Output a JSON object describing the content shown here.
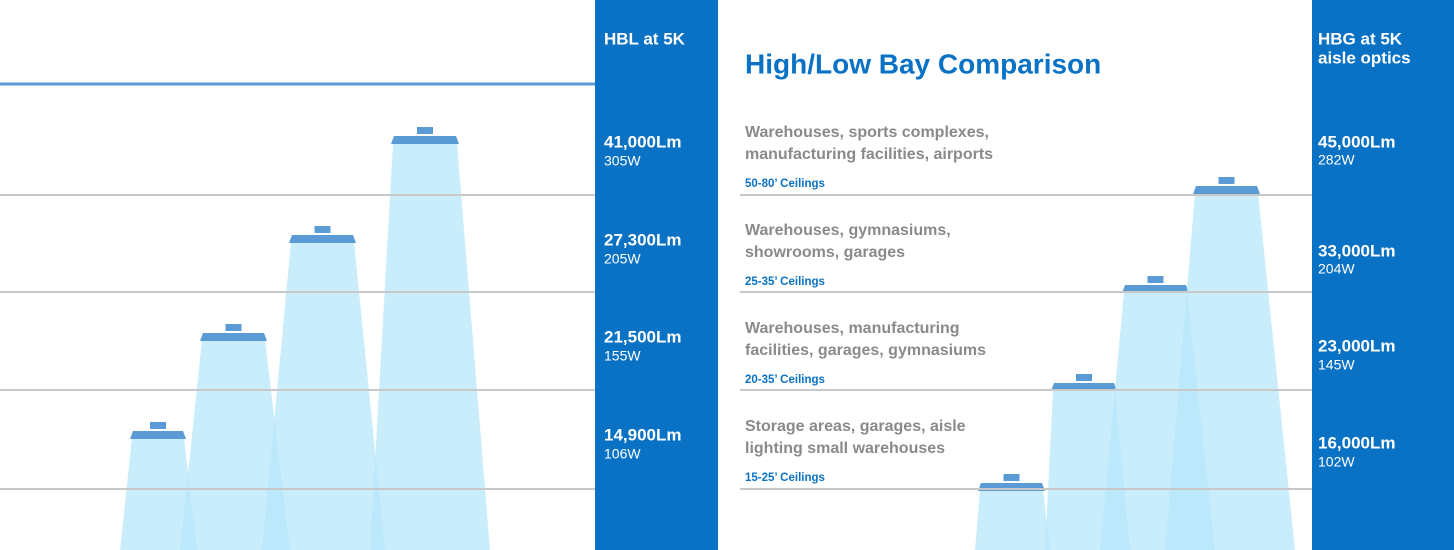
{
  "title": "High/Low Bay Comparison",
  "left": {
    "header": "HBL at 5K",
    "rows": [
      {
        "lumens": "41,000Lm",
        "watts": "305W"
      },
      {
        "lumens": "27,300Lm",
        "watts": "205W"
      },
      {
        "lumens": "21,500Lm",
        "watts": "155W"
      },
      {
        "lumens": "14,900Lm",
        "watts": "106W"
      }
    ]
  },
  "applications": [
    {
      "lines": [
        "Warehouses, sports complexes,",
        "manufacturing facilities, airports"
      ],
      "ceilings": "50-80’ Ceilings"
    },
    {
      "lines": [
        "Warehouses, gymnasiums,",
        "showrooms, garages"
      ],
      "ceilings": "25-35’ Ceilings"
    },
    {
      "lines": [
        "Warehouses, manufacturing",
        "facilities, garages, gymnasiums"
      ],
      "ceilings": "20-35’ Ceilings"
    },
    {
      "lines": [
        "Storage areas, garages, aisle",
        "lighting small warehouses"
      ],
      "ceilings": "15-25’ Ceilings"
    }
  ],
  "right": {
    "header": [
      "HBG  at 5K",
      "aisle optics"
    ],
    "rows": [
      {
        "lumens": "45,000Lm",
        "watts": "282W"
      },
      {
        "lumens": "33,000Lm",
        "watts": "204W"
      },
      {
        "lumens": "23,000Lm",
        "watts": "145W"
      },
      {
        "lumens": "16,000Lm",
        "watts": "102W"
      }
    ]
  }
}
